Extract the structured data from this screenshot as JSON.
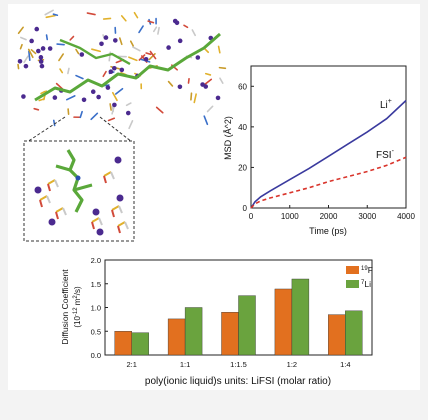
{
  "chart_data": [
    {
      "type": "line",
      "xlabel": "Time (ps)",
      "ylabel": "MSD (Å^2)",
      "xlim": [
        0,
        4000
      ],
      "ylim": [
        0,
        70
      ],
      "xticks": [
        "0",
        "1000",
        "2000",
        "3000",
        "4000"
      ],
      "yticks": [
        "0",
        "20",
        "40",
        "60"
      ],
      "series": [
        {
          "name": "Li+",
          "label_main": "Li",
          "label_sup": "+",
          "color": "#3a3a9e",
          "style": "solid",
          "x": [
            0,
            100,
            250,
            500,
            1000,
            1500,
            2000,
            2500,
            3000,
            3500,
            4000
          ],
          "y": [
            0,
            3,
            5.5,
            8.5,
            14,
            19.5,
            25.5,
            31.5,
            37.5,
            44,
            53
          ]
        },
        {
          "name": "FSI-",
          "label_main": "FSI",
          "label_sup": "-",
          "color": "#d9342b",
          "style": "dashed",
          "x": [
            0,
            100,
            250,
            500,
            1000,
            1500,
            2000,
            2500,
            3000,
            3500,
            4000
          ],
          "y": [
            0,
            2,
            3.5,
            5,
            7.5,
            10,
            13,
            15.5,
            18,
            21,
            25
          ]
        }
      ]
    },
    {
      "type": "bar",
      "xlabel": "poly(ionic liquid)s units: LiFSI (molar ratio)",
      "ylabel": "Diffusion Coefficient",
      "ylabel_unit": "(10-12 m2/s)",
      "ylim": [
        0,
        2.0
      ],
      "yticks": [
        "0.0",
        "0.5",
        "1.0",
        "1.5",
        "2.0"
      ],
      "categories": [
        "2:1",
        "1:1",
        "1:1.5",
        "1:2",
        "1:4"
      ],
      "series": [
        {
          "name": "19F",
          "sup": "19",
          "base": "F",
          "color": "#e2701f",
          "values": [
            0.5,
            0.76,
            0.9,
            1.39,
            0.85
          ]
        },
        {
          "name": "7Li",
          "sup": "7",
          "base": "Li",
          "color": "#6aa33e",
          "values": [
            0.47,
            1.0,
            1.25,
            1.6,
            0.93
          ]
        }
      ]
    }
  ],
  "illustration": {
    "caption": "molecular dynamics snapshot with zoomed inset"
  }
}
